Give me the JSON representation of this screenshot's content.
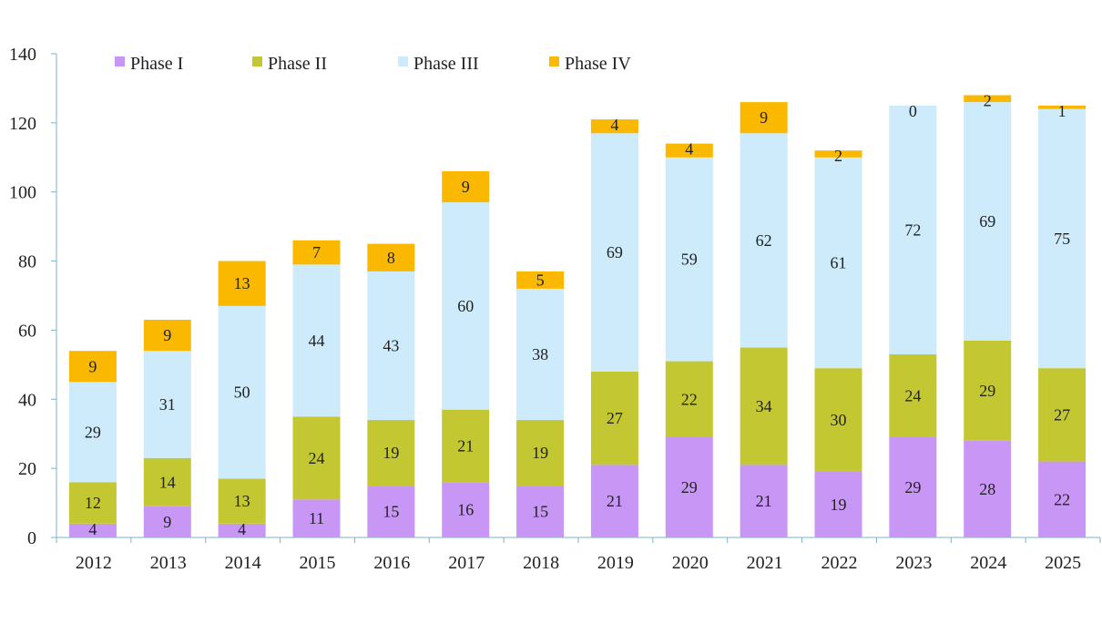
{
  "chart_data": {
    "type": "bar",
    "stacked": true,
    "title": "",
    "xlabel": "",
    "ylabel": "",
    "categories": [
      "2012",
      "2013",
      "2014",
      "2015",
      "2016",
      "2017",
      "2018",
      "2019",
      "2020",
      "2021",
      "2022",
      "2023",
      "2024",
      "2025"
    ],
    "series": [
      {
        "name": "Phase I",
        "color": "#c896f5",
        "values": [
          4,
          9,
          4,
          11,
          15,
          16,
          15,
          21,
          29,
          21,
          19,
          29,
          28,
          22
        ]
      },
      {
        "name": "Phase II",
        "color": "#c3c832",
        "values": [
          12,
          14,
          13,
          24,
          19,
          21,
          19,
          27,
          22,
          34,
          30,
          24,
          29,
          27
        ]
      },
      {
        "name": "Phase III",
        "color": "#cdebfa",
        "values": [
          29,
          31,
          50,
          44,
          43,
          60,
          38,
          69,
          59,
          62,
          61,
          72,
          69,
          75
        ]
      },
      {
        "name": "Phase IV",
        "color": "#fab900",
        "values": [
          9,
          9,
          13,
          7,
          8,
          9,
          5,
          4,
          4,
          9,
          2,
          0,
          2,
          1
        ]
      }
    ],
    "ylim": [
      0,
      140
    ],
    "yticks": [
      0,
      20,
      40,
      60,
      80,
      100,
      120,
      140
    ],
    "grid": false,
    "legend_position": "top-left"
  }
}
